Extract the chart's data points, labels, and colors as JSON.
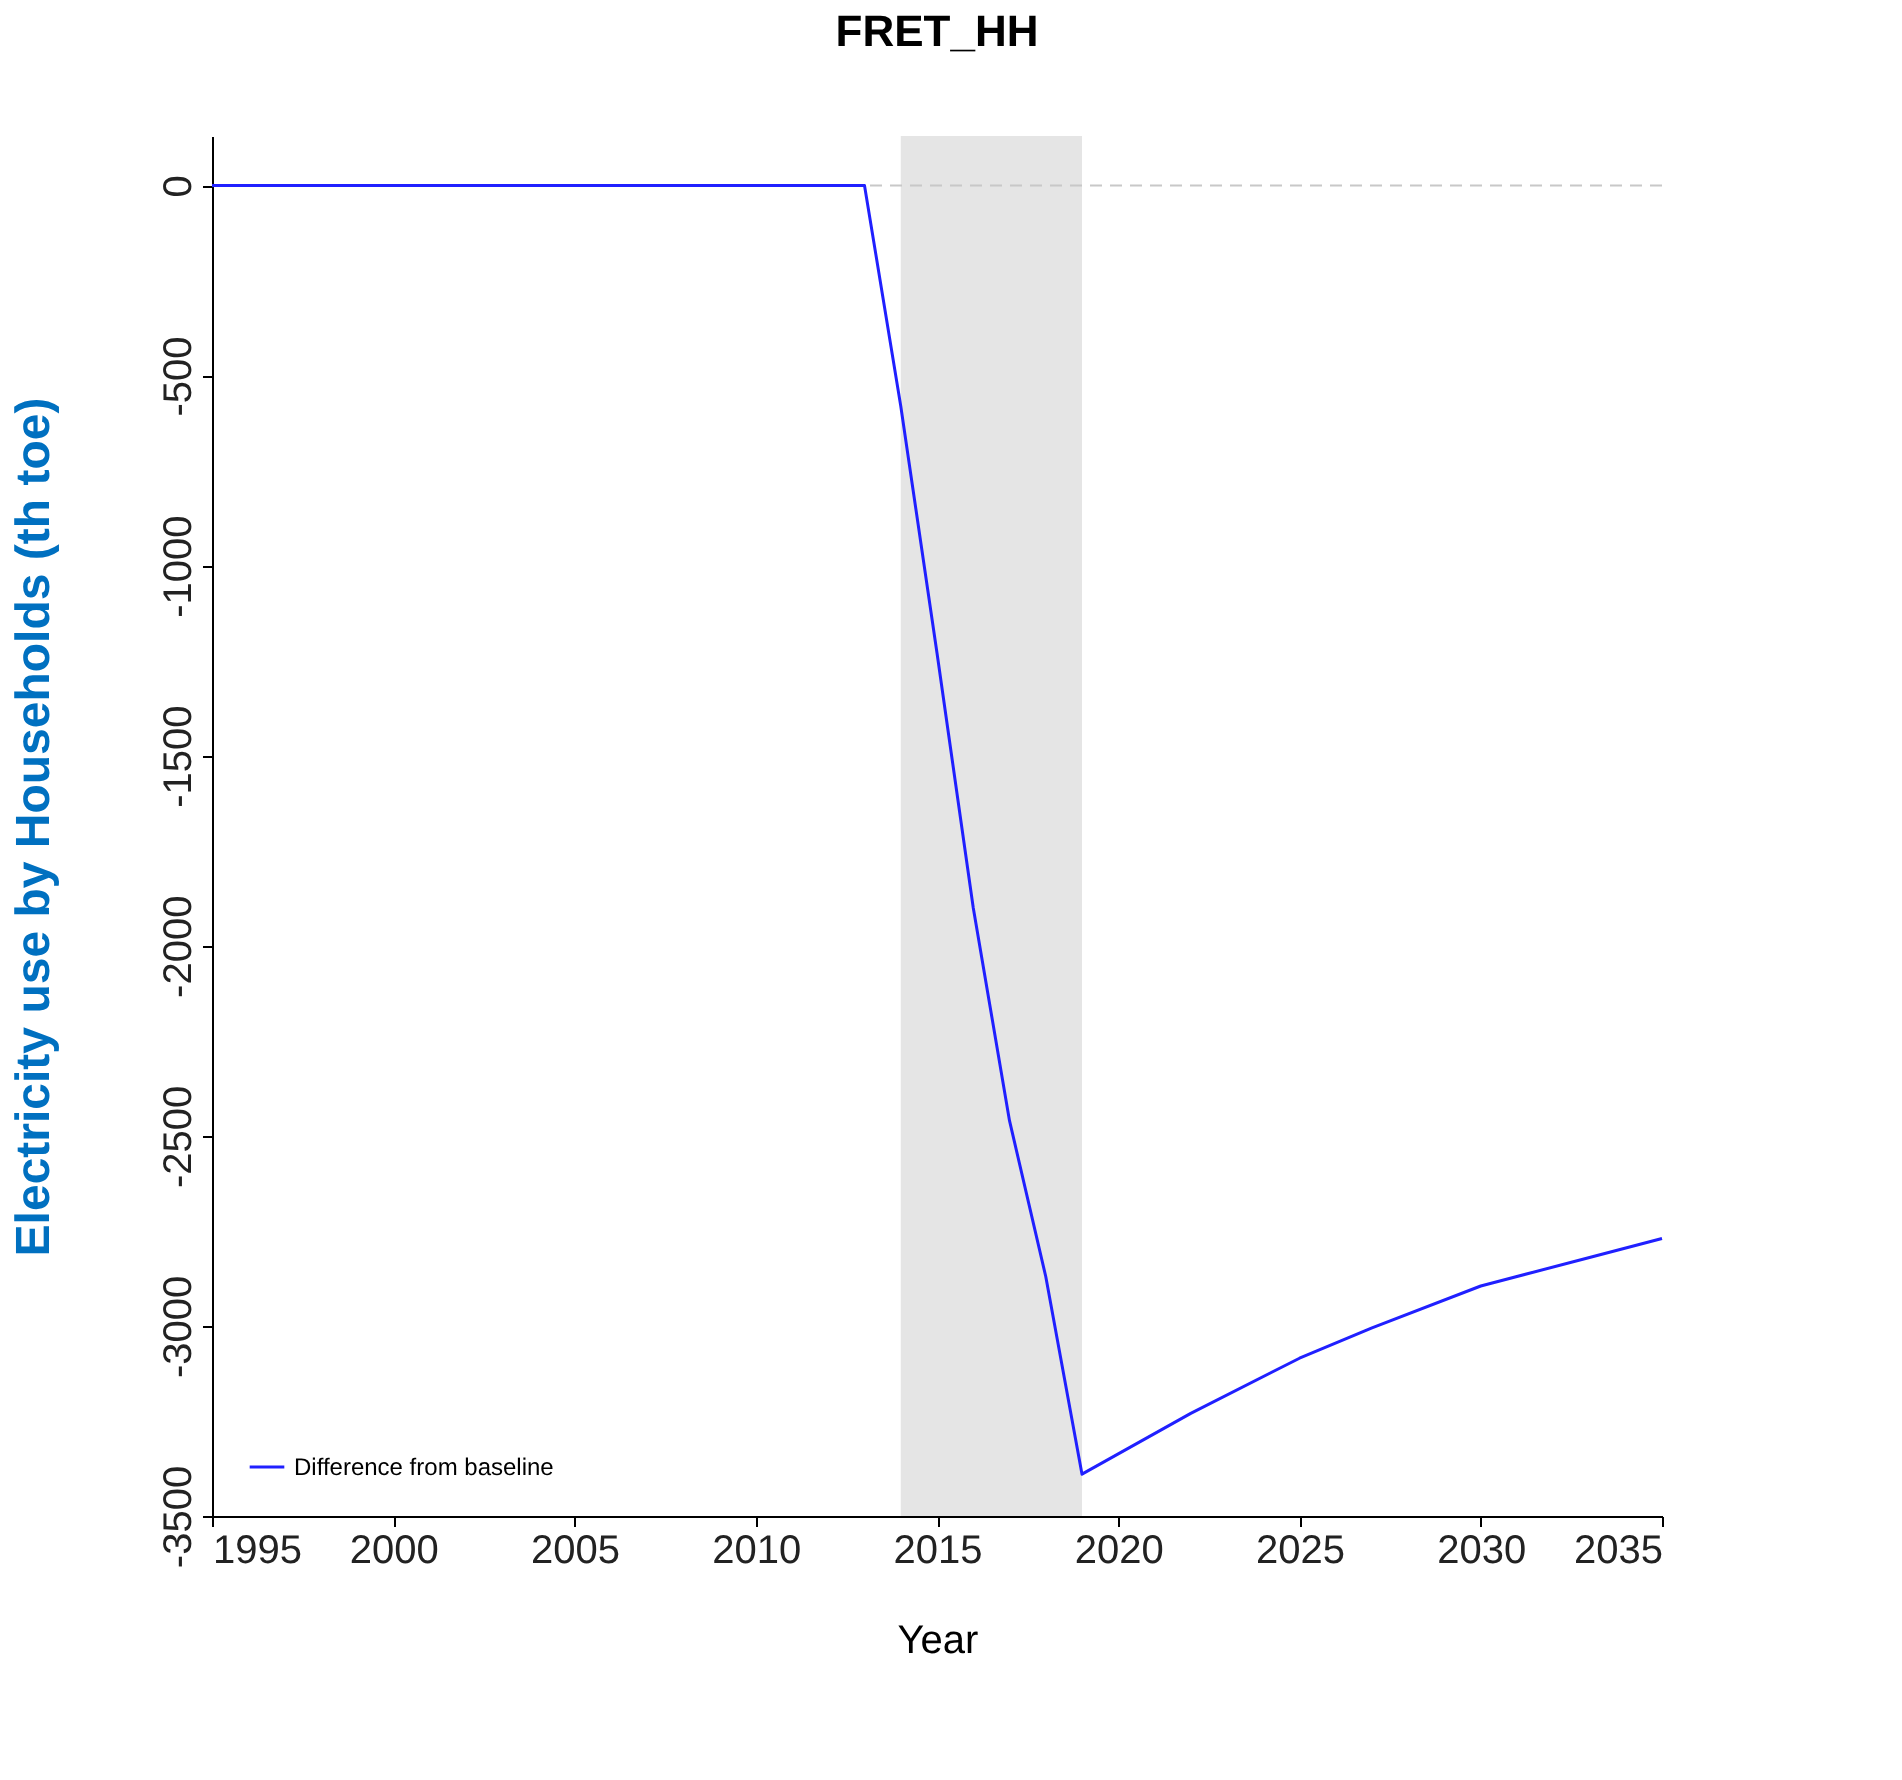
{
  "chart_data": {
    "type": "line",
    "title": "FRET_HH",
    "xlabel": "Year",
    "ylabel": "Electricity use by Households (th toe)",
    "x": [
      1995,
      2000,
      2005,
      2010,
      2013,
      2014,
      2015,
      2016,
      2017,
      2018,
      2019,
      2022,
      2025,
      2027,
      2030,
      2033,
      2035
    ],
    "series": [
      {
        "name": "Difference from baseline",
        "color": "#2020ff",
        "values": [
          0,
          0,
          0,
          0,
          0,
          -580,
          -1230,
          -1900,
          -2460,
          -2870,
          -3390,
          -3230,
          -3085,
          -3005,
          -2895,
          -2820,
          -2770
        ]
      }
    ],
    "xlim": [
      1995,
      2035
    ],
    "xticks": [
      1995,
      2000,
      2005,
      2010,
      2015,
      2020,
      2025,
      2030,
      2035
    ],
    "ylim": [
      -3500,
      130
    ],
    "yticks": [
      0,
      -500,
      -1000,
      -1500,
      -2000,
      -2500,
      -3000,
      -3500
    ],
    "ref_lines": [
      {
        "axis": "y",
        "value": 0,
        "color": "#c8c8c8",
        "line_style": "dashed"
      }
    ],
    "bands": [
      {
        "axis": "x",
        "from": 2014,
        "to": 2019,
        "color": "#e5e5e5"
      }
    ],
    "grid": false,
    "legend": "bottom left",
    "marker": "none",
    "line_style": "solid"
  }
}
